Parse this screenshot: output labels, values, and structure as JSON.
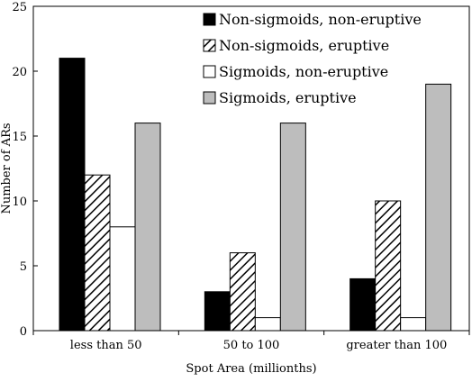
{
  "chart_data": {
    "type": "bar",
    "categories": [
      "less than 50",
      "50 to 100",
      "greater than 100"
    ],
    "series": [
      {
        "name": "Non-sigmoids, non-eruptive",
        "values": [
          21,
          3,
          4
        ],
        "fill": "black"
      },
      {
        "name": "Non-sigmoids, eruptive",
        "values": [
          12,
          6,
          10
        ],
        "fill": "hatch"
      },
      {
        "name": "Sigmoids, non-eruptive",
        "values": [
          8,
          1,
          1
        ],
        "fill": "white"
      },
      {
        "name": "Sigmoids, eruptive",
        "values": [
          16,
          16,
          19
        ],
        "fill": "gray"
      }
    ],
    "title": "",
    "xlabel": "Spot Area (millionths)",
    "ylabel": "Number of ARs",
    "ylim": [
      0,
      25
    ],
    "yticks": [
      0,
      5,
      10,
      15,
      20,
      25
    ],
    "grid": false,
    "legend_position": "top-right",
    "colors": {
      "black": "#000000",
      "gray": "#bdbdbd",
      "white": "#ffffff",
      "hatch_stroke": "#000000",
      "axis": "#000000"
    }
  }
}
